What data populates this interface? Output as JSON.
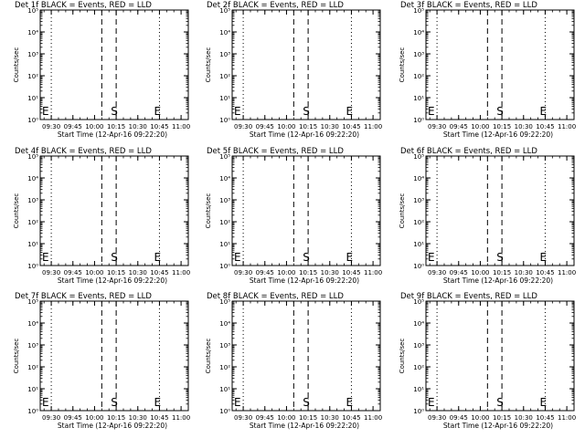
{
  "chart_data": [
    {
      "type": "line",
      "title": "Det 1f BLACK = Events, RED = LLD",
      "ylabel": "Counts/sec",
      "xlabel": "Start Time (12-Apr-16 09:22:20)",
      "x_ticks": [
        "09:30",
        "09:45",
        "10:00",
        "10:15",
        "10:30",
        "10:45",
        "11:00"
      ],
      "y_ticks": [
        "10⁰",
        "10¹",
        "10²",
        "10³",
        "10⁴",
        "10⁵"
      ],
      "ylim": [
        1,
        100000
      ],
      "xlim": [
        "09:22:20",
        "11:05"
      ],
      "y_scale": "log",
      "markers": [
        {
          "label": "E",
          "time": "09:22:20"
        },
        {
          "label": "S",
          "time": "10:10"
        },
        {
          "label": "E",
          "time": "10:40"
        }
      ],
      "series": []
    },
    {
      "type": "line",
      "title": "Det 2f BLACK = Events, RED = LLD",
      "ylabel": "Counts/sec",
      "xlabel": "Start Time (12-Apr-16 09:22:20)",
      "x_ticks": [
        "09:30",
        "09:45",
        "10:00",
        "10:15",
        "10:30",
        "10:45",
        "11:00"
      ],
      "y_ticks": [
        "10⁰",
        "10¹",
        "10²",
        "10³",
        "10⁴",
        "10⁵"
      ],
      "ylim": [
        1,
        100000
      ],
      "xlim": [
        "09:22:20",
        "11:05"
      ],
      "y_scale": "log",
      "markers": [
        {
          "label": "E",
          "time": "09:22:20"
        },
        {
          "label": "S",
          "time": "10:10"
        },
        {
          "label": "E",
          "time": "10:40"
        }
      ],
      "series": []
    },
    {
      "type": "line",
      "title": "Det 3f BLACK = Events, RED = LLD",
      "ylabel": "Counts/sec",
      "xlabel": "Start Time (12-Apr-16 09:22:20)",
      "x_ticks": [
        "09:30",
        "09:45",
        "10:00",
        "10:15",
        "10:30",
        "10:45",
        "11:00"
      ],
      "y_ticks": [
        "10⁰",
        "10¹",
        "10²",
        "10³",
        "10⁴",
        "10⁵"
      ],
      "ylim": [
        1,
        100000
      ],
      "xlim": [
        "09:22:20",
        "11:05"
      ],
      "y_scale": "log",
      "markers": [
        {
          "label": "E",
          "time": "09:22:20"
        },
        {
          "label": "S",
          "time": "10:10"
        },
        {
          "label": "E",
          "time": "10:40"
        }
      ],
      "series": []
    },
    {
      "type": "line",
      "title": "Det 4f BLACK = Events, RED = LLD",
      "ylabel": "Counts/sec",
      "xlabel": "Start Time (12-Apr-16 09:22:20)",
      "x_ticks": [
        "09:30",
        "09:45",
        "10:00",
        "10:15",
        "10:30",
        "10:45",
        "11:00"
      ],
      "y_ticks": [
        "10⁰",
        "10¹",
        "10²",
        "10³",
        "10⁴",
        "10⁵"
      ],
      "ylim": [
        1,
        100000
      ],
      "xlim": [
        "09:22:20",
        "11:05"
      ],
      "y_scale": "log",
      "markers": [
        {
          "label": "E",
          "time": "09:22:20"
        },
        {
          "label": "S",
          "time": "10:10"
        },
        {
          "label": "E",
          "time": "10:40"
        }
      ],
      "series": []
    },
    {
      "type": "line",
      "title": "Det 5f BLACK = Events, RED = LLD",
      "ylabel": "Counts/sec",
      "xlabel": "Start Time (12-Apr-16 09:22:20)",
      "x_ticks": [
        "09:30",
        "09:45",
        "10:00",
        "10:15",
        "10:30",
        "10:45",
        "11:00"
      ],
      "y_ticks": [
        "10⁰",
        "10¹",
        "10²",
        "10³",
        "10⁴",
        "10⁵"
      ],
      "ylim": [
        1,
        100000
      ],
      "xlim": [
        "09:22:20",
        "11:05"
      ],
      "y_scale": "log",
      "markers": [
        {
          "label": "E",
          "time": "09:22:20"
        },
        {
          "label": "S",
          "time": "10:10"
        },
        {
          "label": "E",
          "time": "10:40"
        }
      ],
      "series": []
    },
    {
      "type": "line",
      "title": "Det 6f BLACK = Events, RED = LLD",
      "ylabel": "Counts/sec",
      "xlabel": "Start Time (12-Apr-16 09:22:20)",
      "x_ticks": [
        "09:30",
        "09:45",
        "10:00",
        "10:15",
        "10:30",
        "10:45",
        "11:00"
      ],
      "y_ticks": [
        "10⁰",
        "10¹",
        "10²",
        "10³",
        "10⁴",
        "10⁵"
      ],
      "ylim": [
        1,
        100000
      ],
      "xlim": [
        "09:22:20",
        "11:05"
      ],
      "y_scale": "log",
      "markers": [
        {
          "label": "E",
          "time": "09:22:20"
        },
        {
          "label": "S",
          "time": "10:10"
        },
        {
          "label": "E",
          "time": "10:40"
        }
      ],
      "series": []
    },
    {
      "type": "line",
      "title": "Det 7f BLACK = Events, RED = LLD",
      "ylabel": "Counts/sec",
      "xlabel": "Start Time (12-Apr-16 09:22:20)",
      "x_ticks": [
        "09:30",
        "09:45",
        "10:00",
        "10:15",
        "10:30",
        "10:45",
        "11:00"
      ],
      "y_ticks": [
        "10⁰",
        "10¹",
        "10²",
        "10³",
        "10⁴",
        "10⁵"
      ],
      "ylim": [
        1,
        100000
      ],
      "xlim": [
        "09:22:20",
        "11:05"
      ],
      "y_scale": "log",
      "markers": [
        {
          "label": "E",
          "time": "09:22:20"
        },
        {
          "label": "S",
          "time": "10:10"
        },
        {
          "label": "E",
          "time": "10:40"
        }
      ],
      "series": []
    },
    {
      "type": "line",
      "title": "Det 8f BLACK = Events, RED = LLD",
      "ylabel": "Counts/sec",
      "xlabel": "Start Time (12-Apr-16 09:22:20)",
      "x_ticks": [
        "09:30",
        "09:45",
        "10:00",
        "10:15",
        "10:30",
        "10:45",
        "11:00"
      ],
      "y_ticks": [
        "10⁰",
        "10¹",
        "10²",
        "10³",
        "10⁴",
        "10⁵"
      ],
      "ylim": [
        1,
        100000
      ],
      "xlim": [
        "09:22:20",
        "11:05"
      ],
      "y_scale": "log",
      "markers": [
        {
          "label": "E",
          "time": "09:22:20"
        },
        {
          "label": "S",
          "time": "10:10"
        },
        {
          "label": "E",
          "time": "10:40"
        }
      ],
      "series": []
    },
    {
      "type": "line",
      "title": "Det 9f BLACK = Events, RED = LLD",
      "ylabel": "Counts/sec",
      "xlabel": "Start Time (12-Apr-16 09:22:20)",
      "x_ticks": [
        "09:30",
        "09:45",
        "10:00",
        "10:15",
        "10:30",
        "10:45",
        "11:00"
      ],
      "y_ticks": [
        "10⁰",
        "10¹",
        "10²",
        "10³",
        "10⁴",
        "10⁵"
      ],
      "ylim": [
        1,
        100000
      ],
      "xlim": [
        "09:22:20",
        "11:05"
      ],
      "y_scale": "log",
      "markers": [
        {
          "label": "E",
          "time": "09:22:20"
        },
        {
          "label": "S",
          "time": "10:10"
        },
        {
          "label": "E",
          "time": "10:40"
        }
      ],
      "series": []
    }
  ],
  "style": {
    "axis_color": "#000000",
    "background": "#ffffff",
    "events_color": "#000000",
    "lld_color": "#ff0000"
  },
  "guide_lines": {
    "dotted": [
      "09:30",
      "10:45",
      "11:05"
    ],
    "dashed": [
      "10:05",
      "10:15"
    ]
  }
}
